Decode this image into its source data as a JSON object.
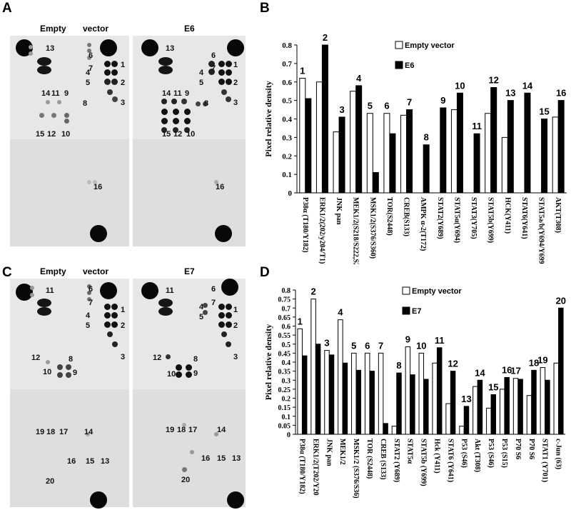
{
  "panels": {
    "A": "A",
    "B": "B",
    "C": "C",
    "D": "D"
  },
  "blots": {
    "A_left_title": "Empty",
    "A_left_title2": "vector",
    "A_right_title": "E6",
    "C_left_title": "Empty",
    "C_left_title2": "vector",
    "C_right_title": "E7",
    "A_labels": [
      "13",
      "6",
      "7",
      "4",
      "1",
      "5",
      "2",
      "14",
      "11",
      "9",
      "8",
      "3",
      "15",
      "12",
      "10",
      "16"
    ],
    "C_labels": [
      "11",
      "6",
      "7",
      "4",
      "1",
      "5",
      "2",
      "12",
      "8",
      "10",
      "9",
      "3",
      "19",
      "18",
      "17",
      "14",
      "16",
      "15",
      "13",
      "20"
    ]
  },
  "chart_data": [
    {
      "type": "bar",
      "ylabel": "Pixel relative density",
      "ylim": [
        0,
        0.8
      ],
      "yticks": [
        "0",
        "0.1",
        "0.2",
        "0.3",
        "0.4",
        "0.5",
        "0.6",
        "0.7",
        "0.8"
      ],
      "categories": [
        "P38α (T180/Y182)",
        "ERK1/2(202/y204/T1)",
        "JNK pan",
        "MEK1/2(S218/S222,S2)",
        "MSK1/2(S376/S360)",
        "TOR(S2448)",
        "CREB(S133)",
        "AMPK α-2(T172)",
        "STAT2(Y689)",
        "STAT5α(Y694)",
        "STAT3(Y705)",
        "STAT5b(Y699)",
        "HCK(Y411)",
        "STAT6(Y641)",
        "STAT5a/b(Y694/Y699)",
        "AKT(T308)"
      ],
      "number_labels": [
        "1",
        "2",
        "3",
        "4",
        "5",
        "6",
        "7",
        "8",
        "9",
        "10",
        "11",
        "12",
        "13",
        "14",
        "15",
        "16"
      ],
      "series": [
        {
          "name": "Empty vector",
          "color": "#ffffff",
          "values": [
            0.62,
            0.6,
            0.33,
            0.55,
            0.43,
            0.43,
            0.42,
            0,
            0,
            0.45,
            0,
            0.43,
            0.3,
            0,
            0,
            0.41
          ]
        },
        {
          "name": "E6",
          "color": "#000000",
          "values": [
            0.51,
            0.8,
            0.41,
            0.58,
            0.11,
            0.32,
            0.45,
            0.26,
            0.46,
            0.54,
            0.32,
            0.57,
            0.5,
            0.54,
            0.4,
            0.5
          ]
        }
      ]
    },
    {
      "type": "bar",
      "ylabel": "Pixel relative density",
      "ylim": [
        0,
        0.8
      ],
      "yticks": [
        "0",
        "0.05",
        "0.1",
        "0.15",
        "0.2",
        "0.25",
        "0.3",
        "0.35",
        "0.4",
        "0.45",
        "0.5",
        "0.55",
        "0.6",
        "0.65",
        "0.7",
        "0.75",
        "0.8"
      ],
      "categories": [
        "P38α (T180/Y182)",
        "ERK1/2(T202/Y20",
        "JNK pan",
        "MEK1/2",
        "MSK1/2 (S376/S36)",
        "TOR (S2448)",
        "CREB (S133)",
        "STAT2 (Y689)",
        "STAT5α",
        "STAT5b (Y699)",
        "Hck (Y411)",
        "STAT6 (Y641)",
        "P53 (S46)",
        "Akt (T308)",
        "P53 (S46)",
        "P53 (S15)",
        "P70 S6",
        "P70 S6",
        "STAT1 (Y701)",
        "c-Jun (63)"
      ],
      "number_labels": [
        "1",
        "2",
        "3",
        "4",
        "5",
        "6",
        "7",
        "8",
        "9",
        "10",
        "11",
        "12",
        "13",
        "14",
        "15",
        "16",
        "17",
        "18",
        "19",
        "20"
      ],
      "series": [
        {
          "name": "Empty vector",
          "color": "#ffffff",
          "values": [
            0.585,
            0.75,
            0.465,
            0.635,
            0.45,
            0.45,
            0.45,
            0.045,
            0.485,
            0.45,
            0.395,
            0.17,
            0.045,
            0.265,
            0.145,
            0.25,
            0.31,
            0.215,
            0.37,
            0.395
          ]
        },
        {
          "name": "E7",
          "color": "#000000",
          "values": [
            0.435,
            0.5,
            0.44,
            0.395,
            0.355,
            0.35,
            0.06,
            0.34,
            0.33,
            0.305,
            0.48,
            0.35,
            0.155,
            0.3,
            0.22,
            0.315,
            0.305,
            0.355,
            0.3,
            0.7
          ]
        }
      ]
    }
  ]
}
